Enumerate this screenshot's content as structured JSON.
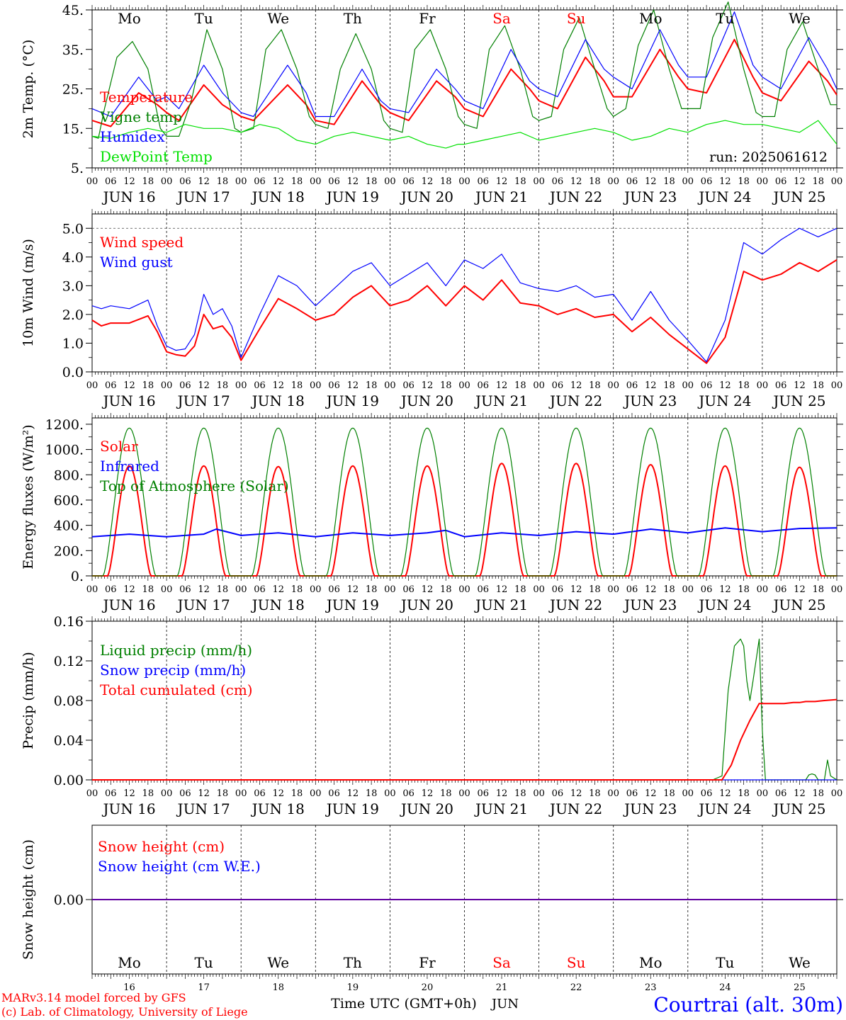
{
  "meta": {
    "run": "run: 2025061612",
    "model_credit": "MARv3.14 model forced by GFS",
    "lab_credit": "(c) Lab. of Climatology, University of Liege",
    "station": "Courtrai (alt. 30m)",
    "x_axis_title": "Time UTC (GMT+0h)",
    "month": "JUN"
  },
  "days": {
    "weekday_labels": [
      "Mo",
      "Tu",
      "We",
      "Th",
      "Fr",
      "Sa",
      "Su",
      "Mo",
      "Tu",
      "We"
    ],
    "weekend_flags": [
      false,
      false,
      false,
      false,
      false,
      true,
      true,
      false,
      false,
      false
    ],
    "date_labels": [
      "JUN 16",
      "JUN 17",
      "JUN 18",
      "JUN 19",
      "JUN 20",
      "JUN 21",
      "JUN 22",
      "JUN 23",
      "JUN 24",
      "JUN 25"
    ],
    "day_numbers": [
      "16",
      "17",
      "18",
      "19",
      "20",
      "21",
      "22",
      "23",
      "24",
      "25"
    ],
    "hour_labels": [
      "00",
      "06",
      "12",
      "18"
    ],
    "final_hour_label": "00"
  },
  "colors": {
    "red": "#ff0000",
    "green": "#008000",
    "blue": "#0000ff",
    "lightgreen": "#00e000",
    "weekend": "#ff0000",
    "station": "#0000ff"
  },
  "chart_data": [
    {
      "type": "line",
      "ylabel": "2m Temp. (°C)",
      "ylim": [
        5,
        45
      ],
      "yticks": [
        "5.",
        "15.",
        "25.",
        "35.",
        "45."
      ],
      "x_unit": "hours since JUN 16 00 UTC",
      "series": [
        {
          "name": "Temperature",
          "color": "red",
          "x": [
            0,
            6,
            15,
            21,
            24,
            28,
            36,
            42,
            48,
            52,
            63,
            69,
            72,
            78,
            87,
            93,
            96,
            102,
            111,
            117,
            120,
            126,
            135,
            141,
            144,
            150,
            159,
            165,
            168,
            174,
            183,
            189,
            192,
            198,
            207,
            213,
            216,
            222,
            231,
            237,
            240
          ],
          "y": [
            17,
            15.5,
            24,
            21,
            19,
            17,
            26,
            21,
            18,
            17,
            26,
            21,
            17,
            16,
            27,
            21,
            19,
            17,
            27,
            23,
            20,
            18,
            30,
            25,
            22,
            20,
            33,
            27,
            23,
            23,
            35,
            28,
            25,
            24,
            37.5,
            28,
            24,
            22,
            32,
            27,
            23.5
          ]
        },
        {
          "name": "Vigne temp",
          "color": "green",
          "x": [
            0,
            2,
            4,
            8,
            13,
            18,
            22,
            24,
            28,
            32,
            37,
            42,
            46,
            48,
            52,
            56,
            61,
            66,
            70,
            72,
            76,
            80,
            85,
            90,
            94,
            96,
            100,
            104,
            109,
            114,
            118,
            120,
            124,
            128,
            133,
            138,
            142,
            144,
            148,
            152,
            157,
            162,
            166,
            168,
            172,
            176,
            181,
            186,
            190,
            192,
            196,
            200,
            205,
            210,
            214,
            216,
            220,
            224,
            229,
            234,
            238,
            240
          ],
          "y": [
            13,
            12.5,
            20,
            33,
            37,
            30,
            15,
            13,
            13,
            22,
            40,
            30,
            15,
            14,
            15,
            35,
            40,
            30,
            18,
            16,
            15,
            30,
            39,
            30,
            17,
            15,
            14,
            35,
            40,
            30,
            18,
            16,
            15,
            35,
            41,
            30,
            18,
            17,
            18,
            35,
            43,
            30,
            20,
            18,
            20,
            36,
            45,
            30,
            20,
            20,
            20,
            38,
            47,
            30,
            19,
            18,
            18,
            35,
            42,
            30,
            21,
            21
          ]
        },
        {
          "name": "Humidex",
          "color": "blue",
          "x": [
            0,
            6,
            15,
            21,
            24,
            28,
            36,
            42,
            48,
            52,
            63,
            69,
            72,
            78,
            87,
            93,
            96,
            102,
            111,
            117,
            120,
            126,
            135,
            141,
            144,
            150,
            159,
            165,
            168,
            174,
            183,
            189,
            192,
            198,
            207,
            213,
            216,
            222,
            231,
            237,
            240
          ],
          "y": [
            20,
            18,
            28,
            22,
            23,
            20,
            31,
            24,
            19,
            18,
            31,
            24,
            18,
            18,
            30,
            22,
            20,
            19,
            30,
            25,
            22,
            20,
            35,
            27,
            25,
            23,
            37.5,
            30,
            28,
            25,
            40,
            31,
            28,
            28,
            44.5,
            31,
            28,
            25,
            38,
            30,
            25
          ]
        },
        {
          "name": "DewPoint Temp",
          "color": "lightgreen",
          "x": [
            0,
            6,
            12,
            18,
            24,
            30,
            36,
            42,
            48,
            54,
            60,
            66,
            72,
            78,
            84,
            90,
            96,
            102,
            108,
            114,
            118,
            120,
            126,
            132,
            138,
            144,
            150,
            156,
            162,
            168,
            174,
            180,
            186,
            192,
            198,
            204,
            210,
            216,
            222,
            228,
            234,
            240
          ],
          "y": [
            13,
            12.5,
            14,
            15,
            14,
            16,
            15,
            15,
            14,
            16,
            15,
            12,
            11,
            13,
            14,
            13,
            12,
            13,
            11,
            10,
            11,
            11,
            12,
            13,
            14,
            12,
            13,
            14,
            15,
            14,
            12,
            13,
            15,
            14,
            16,
            17,
            16,
            16,
            15,
            14,
            17,
            11
          ]
        }
      ]
    },
    {
      "type": "line",
      "ylabel": "10m Wind (m/s)",
      "ylim": [
        0,
        5.5
      ],
      "yticks": [
        "0.0",
        "1.0",
        "2.0",
        "3.0",
        "4.0",
        "5.0"
      ],
      "reference_line": 5.0,
      "x_unit": "hours since JUN 16 00 UTC",
      "series": [
        {
          "name": "Wind speed",
          "color": "red",
          "x": [
            0,
            3,
            6,
            12,
            18,
            21,
            24,
            27,
            30,
            33,
            36,
            39,
            42,
            45,
            48,
            54,
            60,
            66,
            72,
            78,
            84,
            90,
            96,
            102,
            108,
            114,
            120,
            126,
            132,
            138,
            144,
            150,
            156,
            162,
            168,
            174,
            180,
            186,
            192,
            198,
            204,
            210,
            216,
            222,
            228,
            234,
            240
          ],
          "y": [
            1.8,
            1.6,
            1.7,
            1.7,
            1.95,
            1.4,
            0.7,
            0.6,
            0.55,
            0.9,
            2.0,
            1.5,
            1.6,
            1.2,
            0.4,
            1.5,
            2.55,
            2.2,
            1.8,
            2.0,
            2.6,
            3.0,
            2.3,
            2.5,
            3.0,
            2.3,
            3.0,
            2.5,
            3.2,
            2.4,
            2.3,
            2.0,
            2.2,
            1.9,
            2.0,
            1.4,
            1.9,
            1.3,
            0.8,
            0.3,
            1.2,
            3.5,
            3.2,
            3.4,
            3.8,
            3.5,
            3.9
          ]
        },
        {
          "name": "Wind gust",
          "color": "blue",
          "x": [
            0,
            3,
            6,
            12,
            18,
            21,
            24,
            27,
            30,
            33,
            36,
            39,
            42,
            45,
            48,
            54,
            60,
            66,
            72,
            78,
            84,
            90,
            96,
            102,
            108,
            114,
            120,
            126,
            132,
            138,
            144,
            150,
            156,
            162,
            168,
            174,
            180,
            186,
            192,
            198,
            204,
            210,
            216,
            222,
            228,
            234,
            240
          ],
          "y": [
            2.3,
            2.2,
            2.3,
            2.2,
            2.5,
            1.6,
            0.9,
            0.75,
            0.8,
            1.3,
            2.7,
            2.0,
            2.2,
            1.6,
            0.5,
            2.0,
            3.35,
            3.0,
            2.3,
            2.9,
            3.5,
            3.8,
            3.0,
            3.4,
            3.8,
            3.0,
            3.9,
            3.6,
            4.1,
            3.1,
            2.9,
            2.8,
            3.0,
            2.6,
            2.7,
            1.8,
            2.8,
            1.8,
            1.1,
            0.35,
            1.8,
            4.5,
            4.1,
            4.6,
            5.0,
            4.7,
            5.0
          ]
        }
      ]
    },
    {
      "type": "line",
      "ylabel": "Energy fluxes (W/m²)",
      "ylim": [
        0,
        1250
      ],
      "yticks": [
        "0.",
        "200.",
        "400.",
        "600.",
        "800.",
        "1000.",
        "1200."
      ],
      "x_unit": "hours since JUN 16 00 UTC",
      "daily_cycle": {
        "sunrise_hour": 4,
        "sunset_hour": 20,
        "peak_hour": 12
      },
      "series": [
        {
          "name": "Solar",
          "color": "red",
          "daily_peaks": [
            870,
            870,
            865,
            870,
            870,
            890,
            890,
            880,
            870,
            860
          ],
          "daylight": [
            5,
            19
          ]
        },
        {
          "name": "Infrared",
          "color": "blue",
          "x": [
            0,
            12,
            24,
            36,
            40,
            48,
            60,
            72,
            84,
            96,
            108,
            114,
            120,
            132,
            144,
            156,
            168,
            180,
            192,
            204,
            216,
            228,
            240
          ],
          "y": [
            310,
            330,
            310,
            330,
            370,
            320,
            340,
            310,
            340,
            320,
            340,
            360,
            310,
            340,
            320,
            350,
            330,
            370,
            340,
            380,
            350,
            375,
            380
          ]
        },
        {
          "name": "Top of Atmosphere (Solar)",
          "color": "green",
          "daily_peaks": [
            1170,
            1170,
            1170,
            1170,
            1170,
            1170,
            1170,
            1170,
            1170,
            1170
          ],
          "daylight": [
            3.5,
            20.5
          ]
        }
      ]
    },
    {
      "type": "line",
      "ylabel": "Precip (mm/h)",
      "ylim": [
        0,
        0.16
      ],
      "yticks": [
        "0.00",
        "0.04",
        "0.08",
        "0.12",
        "0.16"
      ],
      "x_unit": "hours since JUN 16 00 UTC",
      "series": [
        {
          "name": "Liquid precip (mm/h)",
          "color": "green",
          "x": [
            0,
            200,
            203,
            205,
            207,
            209,
            210,
            211,
            212,
            213,
            215,
            216,
            217,
            218,
            219,
            220,
            221,
            230,
            231,
            232,
            233,
            234,
            235,
            236,
            237,
            238,
            240
          ],
          "y": [
            0,
            0,
            0.004,
            0.09,
            0.135,
            0.142,
            0.135,
            0.1,
            0.08,
            0.1,
            0.142,
            0.05,
            0,
            0,
            0,
            0,
            0,
            0,
            0.005,
            0.006,
            0.005,
            0,
            0,
            0,
            0.02,
            0.004,
            0
          ]
        },
        {
          "name": "Snow precip (mm/h)",
          "color": "blue",
          "x": [
            0,
            240
          ],
          "y": [
            0,
            0
          ]
        },
        {
          "name": "Total cumulated (cm)",
          "color": "red",
          "x": [
            0,
            203,
            206,
            209,
            212,
            215,
            217,
            223,
            226,
            228,
            230,
            233,
            236,
            240
          ],
          "y": [
            0,
            0,
            0.015,
            0.04,
            0.06,
            0.077,
            0.077,
            0.077,
            0.078,
            0.078,
            0.079,
            0.079,
            0.08,
            0.081
          ]
        }
      ]
    },
    {
      "type": "line",
      "ylabel": "Snow height (cm)",
      "yticks": [
        "0.00"
      ],
      "x_unit": "hours since JUN 16 00 UTC",
      "series": [
        {
          "name": "Snow height (cm)",
          "color": "red",
          "x": [
            0,
            240
          ],
          "y": [
            0,
            0
          ]
        },
        {
          "name": "Snow height (cm W.E.)",
          "color": "blue",
          "x": [
            0,
            240
          ],
          "y": [
            0,
            0
          ]
        }
      ]
    }
  ]
}
